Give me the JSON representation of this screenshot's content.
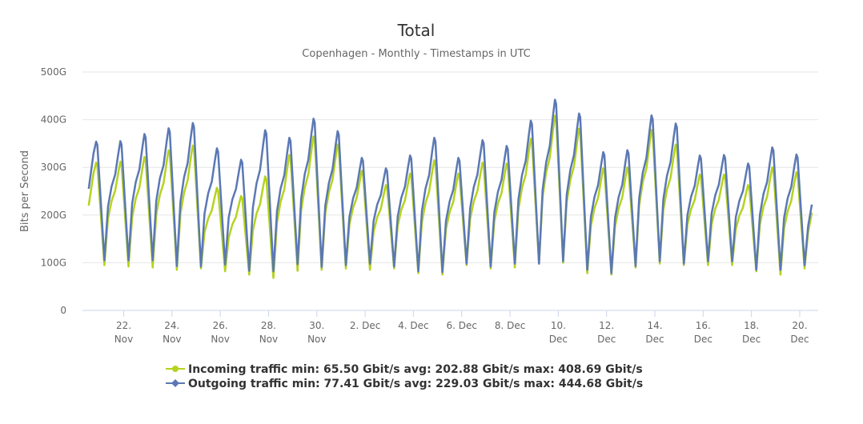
{
  "chart_data": {
    "type": "line",
    "title": "Total",
    "subtitle": "Copenhagen - Monthly - Timestamps in UTC",
    "ylabel": "Bits per Second",
    "xlabel": "",
    "ylim": [
      0,
      500
    ],
    "y_unit": "G",
    "yticks": [
      "0",
      "100G",
      "200G",
      "300G",
      "400G",
      "500G"
    ],
    "xticks": [
      {
        "day": "2015-11-22",
        "lines": [
          "22.",
          "Nov"
        ]
      },
      {
        "day": "2015-11-24",
        "lines": [
          "24.",
          "Nov"
        ]
      },
      {
        "day": "2015-11-26",
        "lines": [
          "26.",
          "Nov"
        ]
      },
      {
        "day": "2015-11-28",
        "lines": [
          "28.",
          "Nov"
        ]
      },
      {
        "day": "2015-11-30",
        "lines": [
          "30.",
          "Nov"
        ]
      },
      {
        "day": "2015-12-02",
        "lines": [
          "2. Dec"
        ]
      },
      {
        "day": "2015-12-04",
        "lines": [
          "4. Dec"
        ]
      },
      {
        "day": "2015-12-06",
        "lines": [
          "6. Dec"
        ]
      },
      {
        "day": "2015-12-08",
        "lines": [
          "8. Dec"
        ]
      },
      {
        "day": "2015-12-10",
        "lines": [
          "10.",
          "Dec"
        ]
      },
      {
        "day": "2015-12-12",
        "lines": [
          "12.",
          "Dec"
        ]
      },
      {
        "day": "2015-12-14",
        "lines": [
          "14.",
          "Dec"
        ]
      },
      {
        "day": "2015-12-16",
        "lines": [
          "16.",
          "Dec"
        ]
      },
      {
        "day": "2015-12-18",
        "lines": [
          "18.",
          "Dec"
        ]
      },
      {
        "day": "2015-12-20",
        "lines": [
          "20.",
          "Dec"
        ]
      }
    ],
    "grid": true,
    "legend_position": "bottom",
    "first_peak_day": "2015-11-20",
    "series": [
      {
        "name": "Incoming traffic",
        "color": "#b5d21f",
        "start": 220,
        "end": 205,
        "legend": "Incoming traffic min: 65.50 Gbit/s avg: 202.88 Gbit/s max: 408.69 Gbit/s",
        "daily_peaks": [
          310,
          312,
          322,
          336,
          346,
          257,
          240,
          281,
          326,
          365,
          348,
          293,
          263,
          287,
          315,
          287,
          310,
          308,
          360,
          408,
          381,
          298,
          300,
          379,
          348,
          285,
          285,
          263,
          300,
          290
        ],
        "daily_troughs": [
          95,
          92,
          90,
          85,
          88,
          82,
          75,
          68,
          83,
          85,
          88,
          85,
          88,
          78,
          75,
          95,
          88,
          90,
          98,
          100,
          78,
          75,
          90,
          98,
          95,
          95,
          95,
          82,
          75,
          88
        ]
      },
      {
        "name": "Outgoing traffic",
        "color": "#5b78b4",
        "start": 255,
        "end": 222,
        "legend": "Outgoing traffic min: 77.41 Gbit/s avg: 229.03 Gbit/s max: 444.68 Gbit/s",
        "daily_peaks": [
          354,
          355,
          370,
          382,
          393,
          340,
          316,
          378,
          362,
          402,
          376,
          320,
          298,
          325,
          362,
          320,
          357,
          345,
          398,
          442,
          413,
          332,
          336,
          409,
          392,
          325,
          326,
          308,
          342,
          327
        ],
        "daily_troughs": [
          105,
          105,
          105,
          93,
          92,
          96,
          83,
          82,
          97,
          91,
          95,
          98,
          92,
          82,
          80,
          98,
          92,
          98,
          98,
          103,
          85,
          78,
          93,
          103,
          98,
          103,
          103,
          85,
          85,
          95
        ]
      }
    ]
  }
}
